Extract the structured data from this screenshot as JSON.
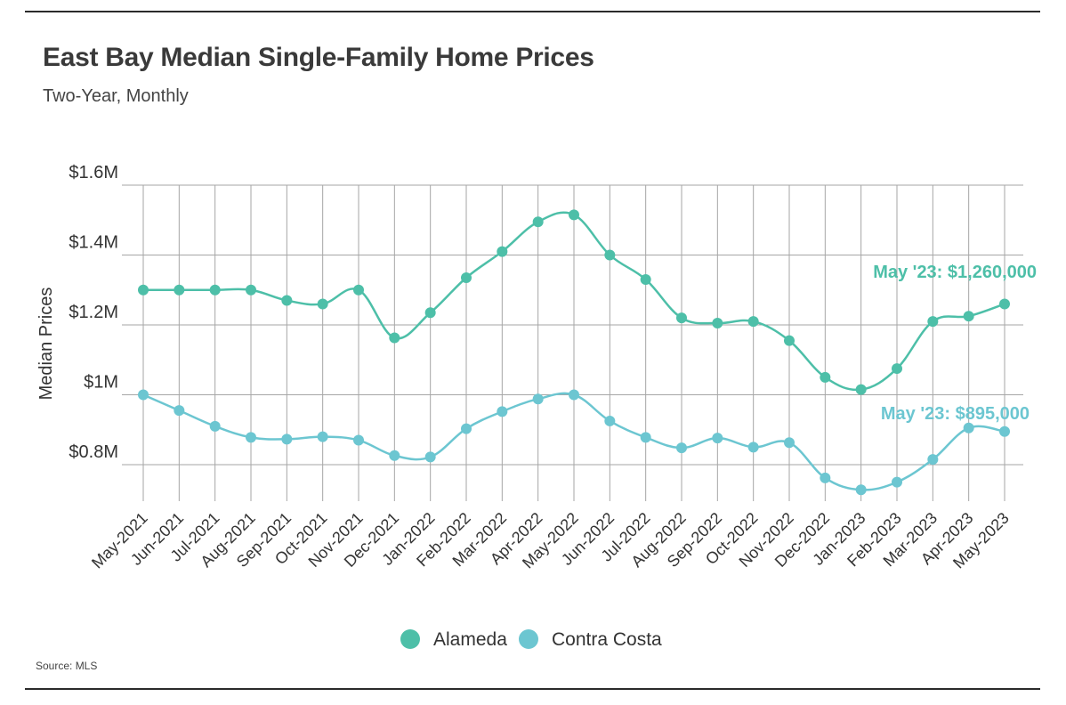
{
  "header": {
    "title": "East Bay Median Single-Family Home Prices",
    "subtitle": "Two-Year, Monthly"
  },
  "footer": {
    "source": "Source: MLS"
  },
  "colors": {
    "alameda": "#4dbfa8",
    "contra_costa": "#6cc6d1",
    "grid": "#a6a6a6"
  },
  "chart_data": {
    "type": "line",
    "title": "East Bay Median Single-Family Home Prices",
    "subtitle": "Two-Year, Monthly",
    "xlabel": "",
    "ylabel": "Median Prices",
    "ylim": [
      720000,
      1600000
    ],
    "yticks": [
      {
        "value": 1600000,
        "label": "$1.6M"
      },
      {
        "value": 1400000,
        "label": "$1.4M"
      },
      {
        "value": 1200000,
        "label": "$1.2M"
      },
      {
        "value": 1000000,
        "label": "$1M"
      },
      {
        "value": 800000,
        "label": "$0.8M"
      }
    ],
    "categories": [
      "May-2021",
      "Jun-2021",
      "Jul-2021",
      "Aug-2021",
      "Sep-2021",
      "Oct-2021",
      "Nov-2021",
      "Dec-2021",
      "Jan-2022",
      "Feb-2022",
      "Mar-2022",
      "Apr-2022",
      "May-2022",
      "Jun-2022",
      "Jul-2022",
      "Aug-2022",
      "Sep-2022",
      "Oct-2022",
      "Nov-2022",
      "Dec-2022",
      "Jan-2023",
      "Feb-2023",
      "Mar-2023",
      "Apr-2023",
      "May-2023"
    ],
    "grid": true,
    "legend": "bottom-center",
    "series": [
      {
        "name": "Alameda",
        "color": "#4dbfa8",
        "values": [
          1300000,
          1300000,
          1300000,
          1300000,
          1270000,
          1260000,
          1300000,
          1163000,
          1235000,
          1335000,
          1410000,
          1495000,
          1515000,
          1400000,
          1330000,
          1220000,
          1205000,
          1210000,
          1155000,
          1050000,
          1015000,
          1075000,
          1210000,
          1225000,
          1260000
        ],
        "annotation": "May '23: $1,260,000"
      },
      {
        "name": "Contra Costa",
        "color": "#6cc6d1",
        "values": [
          1000000,
          955000,
          910000,
          878000,
          873000,
          880000,
          870000,
          826000,
          822000,
          903000,
          952000,
          988000,
          1000000,
          925000,
          878000,
          848000,
          876000,
          850000,
          863000,
          762000,
          728000,
          750000,
          815000,
          905000,
          895000
        ],
        "annotation": "May '23: $895,000"
      }
    ]
  }
}
